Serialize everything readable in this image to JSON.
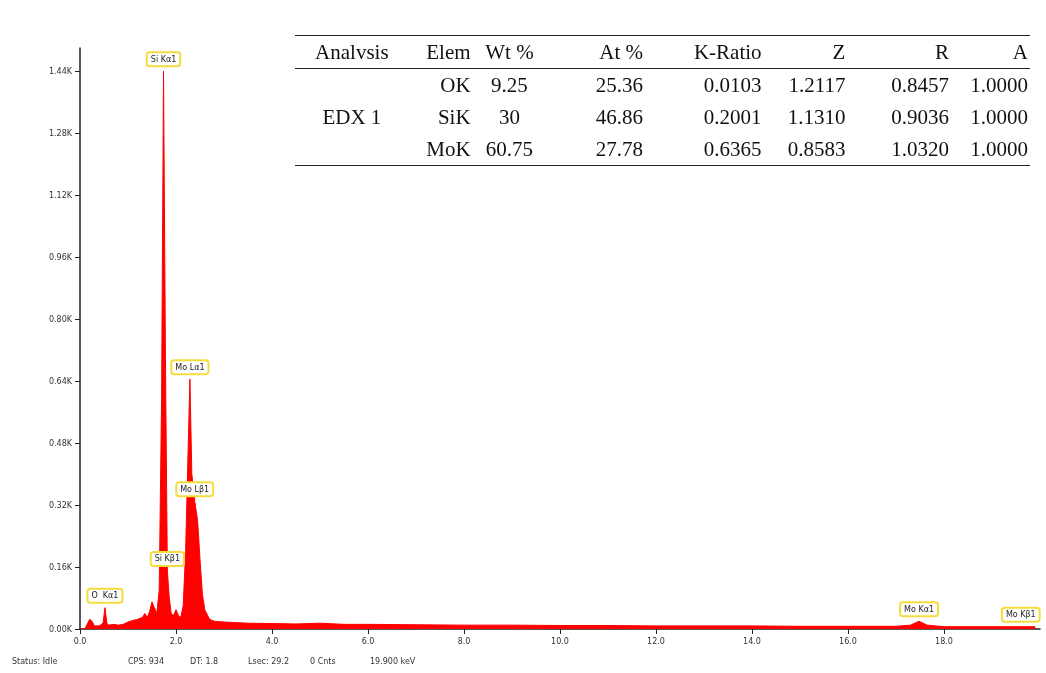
{
  "chart_data": [
    {
      "type": "area",
      "xlim": [
        0,
        20
      ],
      "ylim": [
        0,
        1500
      ],
      "xticks": [
        {
          "value": 0,
          "label": "0.0"
        },
        {
          "value": 2,
          "label": "2.0"
        },
        {
          "value": 4,
          "label": "4.0"
        },
        {
          "value": 6,
          "label": "6.0"
        },
        {
          "value": 8,
          "label": "8.0"
        },
        {
          "value": 10,
          "label": "10.0"
        },
        {
          "value": 12,
          "label": "12.0"
        },
        {
          "value": 14,
          "label": "14.0"
        },
        {
          "value": 16,
          "label": "16.0"
        },
        {
          "value": 18,
          "label": "18.0"
        }
      ],
      "yticks": [
        {
          "value": 0,
          "label": "0.00K"
        },
        {
          "value": 160,
          "label": "0.16K"
        },
        {
          "value": 320,
          "label": "0.32K"
        },
        {
          "value": 480,
          "label": "0.48K"
        },
        {
          "value": 640,
          "label": "0.64K"
        },
        {
          "value": 800,
          "label": "0.80K"
        },
        {
          "value": 960,
          "label": "0.96K"
        },
        {
          "value": 1120,
          "label": "1.12K"
        },
        {
          "value": 1280,
          "label": "1.28K"
        },
        {
          "value": 1440,
          "label": "1.44K"
        }
      ],
      "grid": false,
      "series": [
        {
          "color": "#ff0000",
          "x": [
            0,
            0.1,
            0.15,
            0.2,
            0.25,
            0.3,
            0.4,
            0.48,
            0.52,
            0.56,
            0.6,
            0.7,
            0.8,
            0.9,
            1.0,
            1.1,
            1.2,
            1.3,
            1.35,
            1.4,
            1.45,
            1.5,
            1.55,
            1.6,
            1.65,
            1.7,
            1.74,
            1.78,
            1.82,
            1.86,
            1.9,
            1.95,
            2.0,
            2.05,
            2.1,
            2.15,
            2.2,
            2.25,
            2.29,
            2.33,
            2.39,
            2.45,
            2.5,
            2.55,
            2.6,
            2.7,
            2.8,
            3.0,
            3.5,
            4.0,
            4.5,
            5.0,
            5.5,
            6.0,
            7.0,
            8.0,
            9.0,
            10,
            11,
            12,
            13,
            14,
            15,
            16,
            17,
            17.3,
            17.48,
            17.65,
            18,
            19,
            19.6,
            19.9
          ],
          "values": [
            0,
            0,
            12,
            25,
            20,
            8,
            8,
            15,
            55,
            15,
            10,
            12,
            10,
            12,
            18,
            22,
            25,
            30,
            40,
            30,
            45,
            70,
            55,
            40,
            100,
            600,
            1440,
            700,
            150,
            80,
            40,
            35,
            50,
            35,
            30,
            60,
            200,
            450,
            645,
            400,
            330,
            280,
            180,
            90,
            50,
            25,
            20,
            18,
            15,
            14,
            13,
            15,
            12,
            12,
            11,
            10,
            10,
            9,
            9,
            8,
            8,
            8,
            7,
            7,
            7,
            10,
            20,
            10,
            6,
            6,
            6,
            6
          ]
        }
      ],
      "annotations": [
        {
          "text": "Si Kα1",
          "x": 1.74,
          "y": 1440
        },
        {
          "text": "Mo Lα1",
          "x": 2.29,
          "y": 645
        },
        {
          "text": "Mo Lβ1",
          "x": 2.39,
          "y": 330
        },
        {
          "text": "Si Kβ1",
          "x": 1.82,
          "y": 150
        },
        {
          "text": "O  Kα1",
          "x": 0.52,
          "y": 55
        },
        {
          "text": "Mo Kα1",
          "x": 17.48,
          "y": 20
        },
        {
          "text": "Mo Kβ1",
          "x": 19.6,
          "y": 6
        },
        "Status: Idle",
        "CPS: 934",
        "DT: 1.8",
        "Lsec: 29.2",
        "0 Cnts",
        "19.900 keV"
      ]
    },
    {
      "type": "other",
      "annotations": [
        "Analvsis",
        "Elem",
        "Wt %",
        "At %",
        "K-Ratio",
        "Z",
        "R",
        "A",
        null,
        "OK",
        "9.25",
        "25.36",
        "0.0103",
        "1.2117",
        "0.8457",
        "1.0000",
        "EDX 1",
        "SiK",
        "30",
        "46.86",
        "0.2001",
        "1.1310",
        "0.9036",
        "1.0000",
        null,
        "MoK",
        "60.75",
        "27.78",
        "0.6365",
        "0.8583",
        "1.0320",
        "1.0000"
      ]
    }
  ]
}
